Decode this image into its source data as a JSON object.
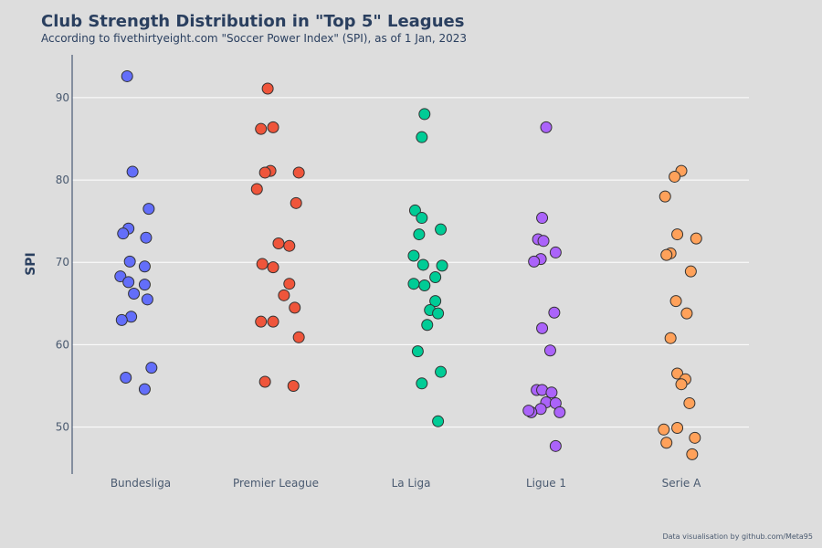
{
  "chart_data": {
    "type": "scatter",
    "title": "Club Strength Distribution in \"Top 5\" Leagues",
    "subtitle": "According to fivethirtyeight.com \"Soccer Power Index\" (SPI), as of 1 Jan, 2023",
    "xlabel": "",
    "ylabel": "SPI",
    "credit": "Data visualisation by github.com/Meta95",
    "categories": [
      "Bundesliga",
      "Premier League",
      "La Liga",
      "Ligue 1",
      "Serie A"
    ],
    "ylim": [
      44.3,
      95.2
    ],
    "yticks": [
      50,
      60,
      70,
      80,
      90
    ],
    "grid": "horizontal",
    "legend": "none",
    "series": [
      {
        "category": "Bundesliga",
        "color": "#636efa",
        "points": [
          [
            -0.1,
            92.6
          ],
          [
            -0.06,
            81.0
          ],
          [
            0.06,
            76.5
          ],
          [
            -0.09,
            74.1
          ],
          [
            -0.13,
            73.5
          ],
          [
            0.04,
            73.0
          ],
          [
            -0.08,
            70.1
          ],
          [
            0.03,
            69.5
          ],
          [
            -0.15,
            68.3
          ],
          [
            -0.09,
            67.6
          ],
          [
            0.03,
            67.3
          ],
          [
            -0.05,
            66.2
          ],
          [
            0.05,
            65.5
          ],
          [
            -0.07,
            63.4
          ],
          [
            -0.14,
            63.0
          ],
          [
            0.08,
            57.2
          ],
          [
            -0.11,
            56.0
          ],
          [
            0.03,
            54.6
          ]
        ]
      },
      {
        "category": "Premier League",
        "color": "#ef553b",
        "points": [
          [
            -0.06,
            91.1
          ],
          [
            -0.02,
            86.4
          ],
          [
            -0.11,
            86.2
          ],
          [
            -0.04,
            81.1
          ],
          [
            -0.08,
            80.9
          ],
          [
            0.17,
            80.9
          ],
          [
            -0.14,
            78.9
          ],
          [
            0.15,
            77.2
          ],
          [
            0.02,
            72.3
          ],
          [
            0.1,
            72.0
          ],
          [
            -0.1,
            69.8
          ],
          [
            -0.02,
            69.4
          ],
          [
            0.1,
            67.4
          ],
          [
            0.06,
            66.0
          ],
          [
            0.14,
            64.5
          ],
          [
            -0.11,
            62.8
          ],
          [
            -0.02,
            62.8
          ],
          [
            0.17,
            60.9
          ],
          [
            -0.08,
            55.5
          ],
          [
            0.13,
            55.0
          ]
        ]
      },
      {
        "category": "La Liga",
        "color": "#00cc96",
        "points": [
          [
            0.1,
            88.0
          ],
          [
            0.08,
            85.2
          ],
          [
            0.03,
            76.3
          ],
          [
            0.08,
            75.4
          ],
          [
            0.22,
            74.0
          ],
          [
            0.06,
            73.4
          ],
          [
            0.02,
            70.8
          ],
          [
            0.09,
            69.7
          ],
          [
            0.23,
            69.6
          ],
          [
            0.18,
            68.2
          ],
          [
            0.02,
            67.4
          ],
          [
            0.1,
            67.2
          ],
          [
            0.18,
            65.3
          ],
          [
            0.14,
            64.2
          ],
          [
            0.2,
            63.8
          ],
          [
            0.12,
            62.4
          ],
          [
            0.05,
            59.2
          ],
          [
            0.22,
            56.7
          ],
          [
            0.08,
            55.3
          ],
          [
            0.2,
            50.7
          ]
        ]
      },
      {
        "category": "Ligue 1",
        "color": "#ab63fa",
        "points": [
          [
            0.0,
            86.4
          ],
          [
            -0.03,
            75.4
          ],
          [
            -0.06,
            72.8
          ],
          [
            -0.02,
            72.6
          ],
          [
            0.07,
            71.2
          ],
          [
            -0.04,
            70.4
          ],
          [
            -0.09,
            70.1
          ],
          [
            0.06,
            63.9
          ],
          [
            -0.03,
            62.0
          ],
          [
            0.03,
            59.3
          ],
          [
            -0.07,
            54.5
          ],
          [
            -0.03,
            54.5
          ],
          [
            0.04,
            54.2
          ],
          [
            0.0,
            53.0
          ],
          [
            0.07,
            52.9
          ],
          [
            -0.04,
            52.2
          ],
          [
            -0.11,
            51.8
          ],
          [
            -0.13,
            52.0
          ],
          [
            0.1,
            51.8
          ],
          [
            0.07,
            47.7
          ]
        ]
      },
      {
        "category": "Serie A",
        "color": "#ffa15a",
        "points": [
          [
            0.0,
            81.1
          ],
          [
            -0.05,
            80.4
          ],
          [
            -0.12,
            78.0
          ],
          [
            -0.03,
            73.4
          ],
          [
            0.11,
            72.9
          ],
          [
            -0.08,
            71.1
          ],
          [
            -0.11,
            70.9
          ],
          [
            0.07,
            68.9
          ],
          [
            -0.04,
            65.3
          ],
          [
            0.04,
            63.8
          ],
          [
            -0.08,
            60.8
          ],
          [
            -0.03,
            56.5
          ],
          [
            0.03,
            55.8
          ],
          [
            0.0,
            55.2
          ],
          [
            0.06,
            52.9
          ],
          [
            -0.03,
            49.9
          ],
          [
            -0.13,
            49.7
          ],
          [
            0.1,
            48.7
          ],
          [
            -0.11,
            48.1
          ],
          [
            0.08,
            46.7
          ]
        ]
      }
    ]
  }
}
